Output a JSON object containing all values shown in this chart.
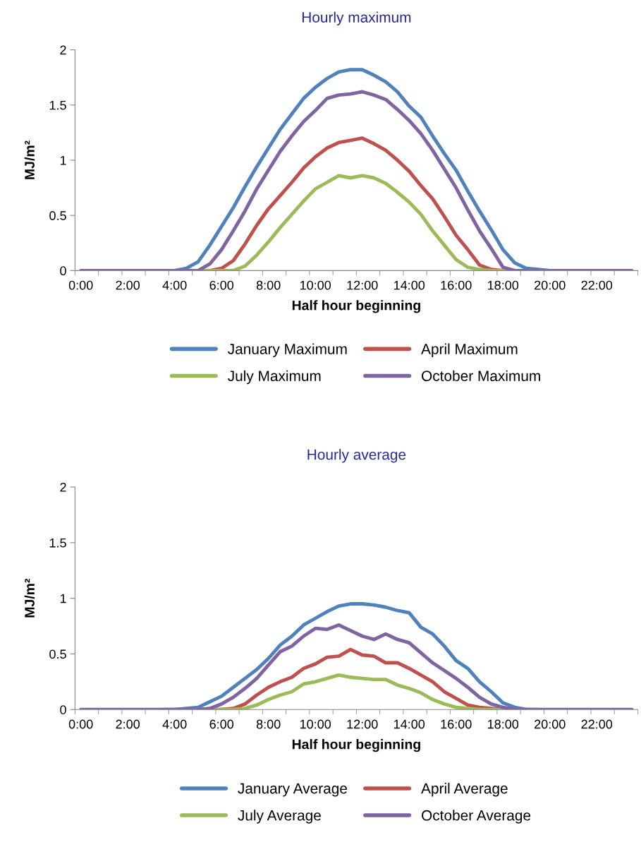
{
  "chart_data": [
    {
      "type": "line",
      "title": "Hourly maximum",
      "xlabel": "Half hour beginning",
      "ylabel": "MJ/m²",
      "categories": [
        "0:00",
        null,
        null,
        null,
        "2:00",
        null,
        null,
        null,
        "4:00",
        null,
        null,
        null,
        "6:00",
        null,
        null,
        null,
        "8:00",
        null,
        null,
        null,
        "10:00",
        null,
        null,
        null,
        "12:00",
        null,
        null,
        null,
        "14:00",
        null,
        null,
        null,
        "16:00",
        null,
        null,
        null,
        "18:00",
        null,
        null,
        null,
        "20:00",
        null,
        null,
        null,
        "22:00",
        null,
        null,
        null
      ],
      "ylim": [
        0,
        2
      ],
      "yticks": [
        0,
        0.5,
        1,
        1.5,
        2
      ],
      "grid": false,
      "legend": "bottom",
      "marker": "none",
      "line_style": "solid",
      "series": [
        {
          "name": "January Maximum",
          "color": "#4f81bd",
          "values": [
            null,
            null,
            null,
            null,
            null,
            null,
            null,
            0,
            0,
            0.02,
            0.08,
            0.23,
            0.4,
            0.57,
            0.76,
            0.94,
            1.11,
            1.28,
            1.42,
            1.56,
            1.66,
            1.74,
            1.8,
            1.82,
            1.82,
            1.77,
            1.71,
            1.62,
            1.49,
            1.39,
            1.22,
            1.06,
            0.91,
            0.72,
            0.54,
            0.37,
            0.19,
            0.07,
            0.02,
            0.01,
            0,
            0,
            null,
            null,
            null,
            null,
            null,
            null
          ]
        },
        {
          "name": "April Maximum",
          "color": "#c0504d",
          "values": [
            null,
            null,
            null,
            null,
            null,
            null,
            null,
            null,
            null,
            null,
            0,
            0,
            0.02,
            0.09,
            0.24,
            0.41,
            0.56,
            0.68,
            0.8,
            0.93,
            1.03,
            1.11,
            1.16,
            1.18,
            1.2,
            1.15,
            1.09,
            1.0,
            0.9,
            0.77,
            0.65,
            0.49,
            0.32,
            0.19,
            0.05,
            0.01,
            0,
            0,
            null,
            null,
            null,
            null,
            null,
            null,
            null,
            null,
            null,
            null
          ]
        },
        {
          "name": "July Maximum",
          "color": "#9bbb59",
          "values": [
            null,
            null,
            null,
            null,
            null,
            null,
            null,
            null,
            null,
            null,
            0,
            0,
            0,
            0,
            0.04,
            0.14,
            0.26,
            0.39,
            0.51,
            0.63,
            0.74,
            0.8,
            0.86,
            0.84,
            0.86,
            0.84,
            0.79,
            0.71,
            0.62,
            0.51,
            0.36,
            0.23,
            0.1,
            0.03,
            0.01,
            0,
            0,
            0,
            null,
            null,
            null,
            null,
            null,
            null,
            null,
            null,
            null,
            null
          ]
        },
        {
          "name": "October Maximum",
          "color": "#8064a2",
          "values": [
            0,
            0,
            0,
            0,
            0,
            0,
            0,
            0,
            0,
            0,
            0,
            0.06,
            0.19,
            0.36,
            0.54,
            0.74,
            0.91,
            1.08,
            1.22,
            1.35,
            1.45,
            1.56,
            1.59,
            1.6,
            1.62,
            1.59,
            1.55,
            1.46,
            1.36,
            1.24,
            1.09,
            0.92,
            0.75,
            0.55,
            0.36,
            0.2,
            0.03,
            0,
            0,
            0,
            0,
            0,
            0,
            0,
            0,
            0,
            0,
            0
          ]
        }
      ]
    },
    {
      "type": "line",
      "title": "Hourly average",
      "xlabel": "Half hour beginning",
      "ylabel": "MJ/m²",
      "categories": [
        "0:00",
        null,
        null,
        null,
        "2:00",
        null,
        null,
        null,
        "4:00",
        null,
        null,
        null,
        "6:00",
        null,
        null,
        null,
        "8:00",
        null,
        null,
        null,
        "10:00",
        null,
        null,
        null,
        "12:00",
        null,
        null,
        null,
        "14:00",
        null,
        null,
        null,
        "16:00",
        null,
        null,
        null,
        "18:00",
        null,
        null,
        null,
        "20:00",
        null,
        null,
        null,
        "22:00",
        null,
        null,
        null
      ],
      "ylim": [
        0,
        2
      ],
      "yticks": [
        0,
        0.5,
        1,
        1.5,
        2
      ],
      "grid": false,
      "legend": "bottom",
      "marker": "none",
      "line_style": "solid",
      "series": [
        {
          "name": "January Average",
          "color": "#4f81bd",
          "values": [
            null,
            null,
            null,
            null,
            null,
            null,
            null,
            0,
            0,
            0.01,
            0.02,
            0.07,
            0.12,
            0.2,
            0.28,
            0.36,
            0.46,
            0.58,
            0.66,
            0.76,
            0.82,
            0.88,
            0.93,
            0.95,
            0.95,
            0.94,
            0.92,
            0.89,
            0.87,
            0.74,
            0.68,
            0.57,
            0.44,
            0.37,
            0.25,
            0.16,
            0.06,
            0.02,
            0,
            0,
            null,
            null,
            null,
            null,
            null,
            null,
            null,
            null
          ]
        },
        {
          "name": "April Average",
          "color": "#c0504d",
          "values": [
            null,
            null,
            null,
            null,
            null,
            null,
            null,
            null,
            null,
            null,
            0,
            0,
            0,
            0.01,
            0.05,
            0.13,
            0.2,
            0.25,
            0.29,
            0.37,
            0.41,
            0.47,
            0.48,
            0.54,
            0.49,
            0.48,
            0.42,
            0.42,
            0.37,
            0.31,
            0.25,
            0.16,
            0.1,
            0.04,
            0.02,
            0.01,
            0,
            0,
            null,
            null,
            null,
            null,
            null,
            null,
            null,
            null,
            null,
            null
          ]
        },
        {
          "name": "July Average",
          "color": "#9bbb59",
          "values": [
            null,
            null,
            null,
            null,
            null,
            null,
            null,
            null,
            null,
            null,
            0,
            0,
            0,
            0,
            0.01,
            0.04,
            0.09,
            0.13,
            0.16,
            0.23,
            0.25,
            0.28,
            0.31,
            0.29,
            0.28,
            0.27,
            0.27,
            0.22,
            0.19,
            0.15,
            0.09,
            0.05,
            0.02,
            0.01,
            0,
            0,
            0,
            0,
            null,
            null,
            null,
            null,
            null,
            null,
            null,
            null,
            null,
            null
          ]
        },
        {
          "name": "October Average",
          "color": "#8064a2",
          "values": [
            0,
            0,
            0,
            0,
            0,
            0,
            0,
            0,
            0,
            0,
            0,
            0.01,
            0.05,
            0.11,
            0.19,
            0.28,
            0.4,
            0.52,
            0.57,
            0.66,
            0.73,
            0.72,
            0.76,
            0.71,
            0.66,
            0.63,
            0.68,
            0.63,
            0.6,
            0.51,
            0.42,
            0.35,
            0.28,
            0.2,
            0.11,
            0.05,
            0.02,
            0,
            0,
            0,
            0,
            0,
            0,
            0,
            0,
            0,
            0,
            0
          ]
        }
      ]
    }
  ]
}
